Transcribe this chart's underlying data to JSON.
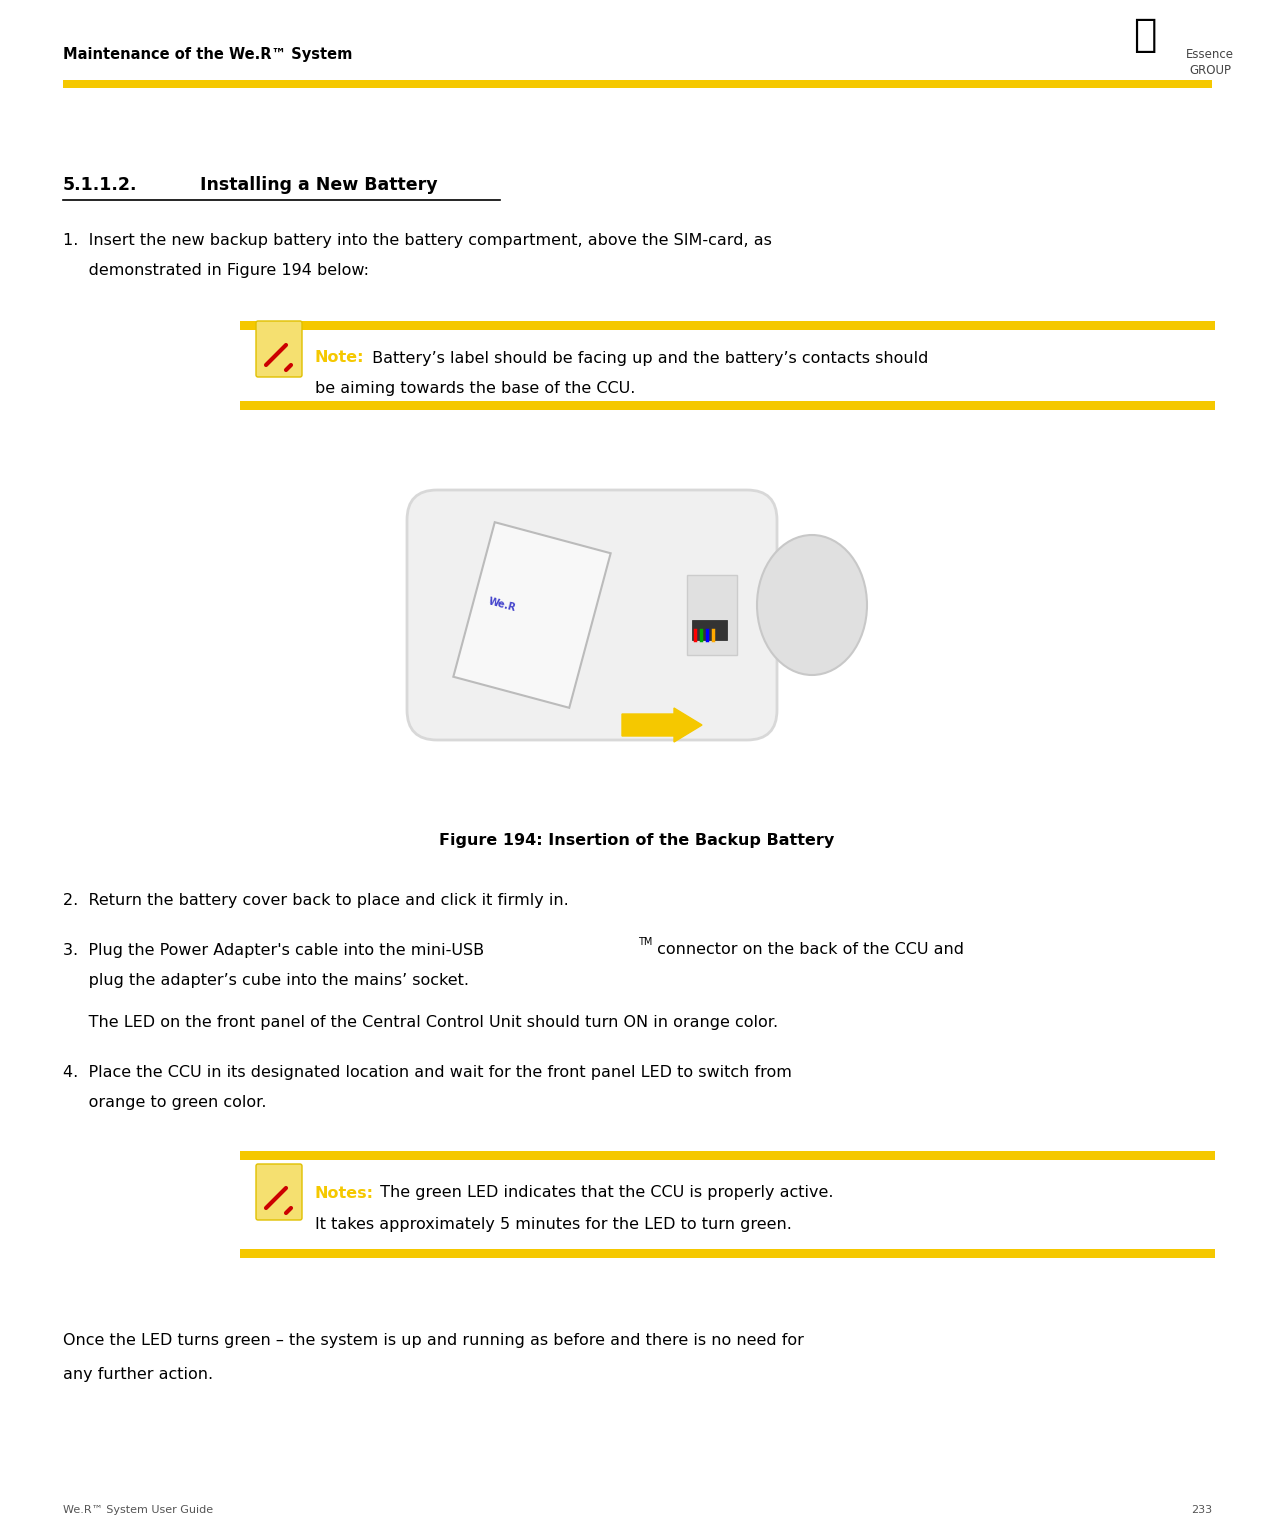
{
  "page_width": 12.75,
  "page_height": 15.32,
  "bg_color": "#ffffff",
  "header_left_text": "Maintenance of the We.R™ System",
  "footer_left_text": "We.R™ System User Guide",
  "footer_right_text": "233",
  "section_title_num": "5.1.1.2.",
  "section_title_label": "Installing a New Battery",
  "step1_line1": "1.  Insert the new backup battery into the battery compartment, above the SIM-card, as",
  "step1_line2": "     demonstrated in Figure 194 below:",
  "note1_label": "Note:",
  "note1_line1": " Battery’s label should be facing up and the battery’s contacts should",
  "note1_line2": "be aiming towards the base of the CCU.",
  "figure_caption": "Figure 194: Insertion of the Backup Battery",
  "step2_text": "2.  Return the battery cover back to place and click it firmly in.",
  "step3_line1": "3.  Plug the Power Adapter's cable into the mini-USB",
  "step3_line1b": "TM",
  "step3_line1c": " connector on the back of the CCU and",
  "step3_line2": "     plug the adapter’s cube into the mains’ socket.",
  "step3_sub": "     The LED on the front panel of the Central Control Unit should turn ON in orange color.",
  "step4_line1": "4.  Place the CCU in its designated location and wait for the front panel LED to switch from",
  "step4_line2": "     orange to green color.",
  "note2_label": "Notes:",
  "note2_line1": " The green LED indicates that the CCU is properly active.",
  "note2_line2": "It takes approximately 5 minutes for the LED to turn green.",
  "closing_line1": "Once the LED turns green – the system is up and running as before and there is no need for",
  "closing_line2": "any further action.",
  "yellow": "#f5c800",
  "text_color": "#000000",
  "note_label_color": "#f5c800",
  "gray_header": "#333333",
  "footer_color": "#555555"
}
